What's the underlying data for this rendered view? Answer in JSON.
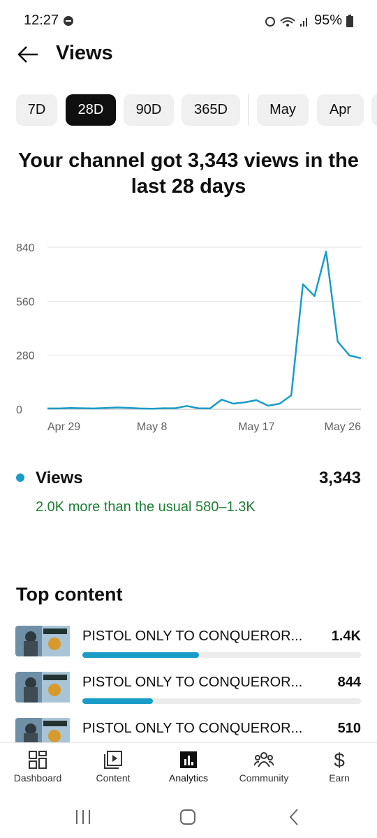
{
  "status_bar": {
    "time": "12:27",
    "battery": "95%"
  },
  "header": {
    "title": "Views"
  },
  "tabs": [
    "7D",
    "28D",
    "90D",
    "365D",
    "May",
    "Apr"
  ],
  "selected_tab": 1,
  "headline": "Your channel got 3,343 views in the last 28 days",
  "chart_data": {
    "type": "line",
    "categories": [
      "Apr 29",
      null,
      null,
      null,
      null,
      null,
      null,
      null,
      null,
      "May 8",
      null,
      null,
      null,
      null,
      null,
      null,
      null,
      null,
      "May 17",
      null,
      null,
      null,
      null,
      null,
      null,
      null,
      null,
      "May 26"
    ],
    "series": [
      {
        "name": "Views",
        "color": "#1a9cc8",
        "values": [
          4,
          4,
          6,
          5,
          4,
          6,
          9,
          7,
          4,
          3,
          5,
          5,
          17,
          5,
          4,
          50,
          29,
          36,
          47,
          18,
          29,
          72,
          648,
          587,
          818,
          351,
          279,
          264
        ]
      }
    ],
    "ylim": [
      0,
      840
    ],
    "yticks": [
      0,
      280,
      560,
      840
    ],
    "grid": true
  },
  "summary": {
    "total": {
      "value": 3343,
      "label": "3,343"
    },
    "note": "2.0K more than the usual 580–1.3K"
  },
  "top_content": {
    "title": "Top content",
    "titles": [
      "PISTOL ONLY TO CONQUEROR...",
      "PISTOL ONLY TO CONQUEROR...",
      "PISTOL ONLY TO CONQUEROR..."
    ],
    "values": [
      1400,
      844,
      510
    ],
    "value_labels": [
      "1.4K",
      "844",
      "510"
    ]
  },
  "nav": [
    "Dashboard",
    "Content",
    "Analytics",
    "Community",
    "Earn"
  ],
  "active_nav": 2
}
